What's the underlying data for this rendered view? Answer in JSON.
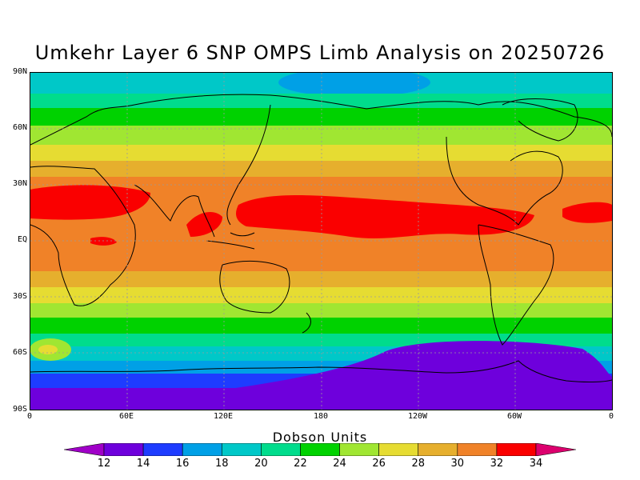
{
  "title": "Umkehr Layer 6 SNP OMPS Limb Analysis on 20250726",
  "map": {
    "lat_ticks": [
      "90N",
      "60N",
      "30N",
      "EQ",
      "30S",
      "60S",
      "90S"
    ],
    "lon_ticks": [
      "0",
      "60E",
      "120E",
      "180",
      "120W",
      "60W",
      "0"
    ],
    "lat_values": [
      90,
      60,
      30,
      0,
      -30,
      -60,
      -90
    ],
    "lon_values": [
      0,
      60,
      120,
      180,
      240,
      300,
      360
    ]
  },
  "colorbar": {
    "title": "Dobson Units",
    "levels": [
      "12",
      "14",
      "16",
      "18",
      "20",
      "22",
      "24",
      "26",
      "28",
      "30",
      "32",
      "34"
    ],
    "colors": [
      "#a000c8",
      "#6e00dc",
      "#1e3cff",
      "#00a0e6",
      "#00c8c8",
      "#00dc8c",
      "#00d200",
      "#a0e632",
      "#e6dc32",
      "#e6af2d",
      "#f08228",
      "#fa0000",
      "#dc006e"
    ]
  },
  "chart_data": {
    "type": "heatmap",
    "title": "Umkehr Layer 6 SNP OMPS Limb Analysis on 20250726",
    "units": "Dobson Units",
    "lat_range": [
      -90,
      90
    ],
    "lon_range": [
      0,
      360
    ],
    "zonal_profile": [
      {
        "lat": 90,
        "value": 18
      },
      {
        "lat": 75,
        "value": 20
      },
      {
        "lat": 65,
        "value": 23
      },
      {
        "lat": 55,
        "value": 26
      },
      {
        "lat": 45,
        "value": 29
      },
      {
        "lat": 30,
        "value": 31
      },
      {
        "lat": 15,
        "value": 33
      },
      {
        "lat": 0,
        "value": 31
      },
      {
        "lat": -15,
        "value": 30
      },
      {
        "lat": -30,
        "value": 27
      },
      {
        "lat": -40,
        "value": 24
      },
      {
        "lat": -50,
        "value": 21
      },
      {
        "lat": -60,
        "value": 17
      },
      {
        "lat": -70,
        "value": 14
      },
      {
        "lat": -80,
        "value": 13
      },
      {
        "lat": -90,
        "value": 13
      }
    ]
  }
}
